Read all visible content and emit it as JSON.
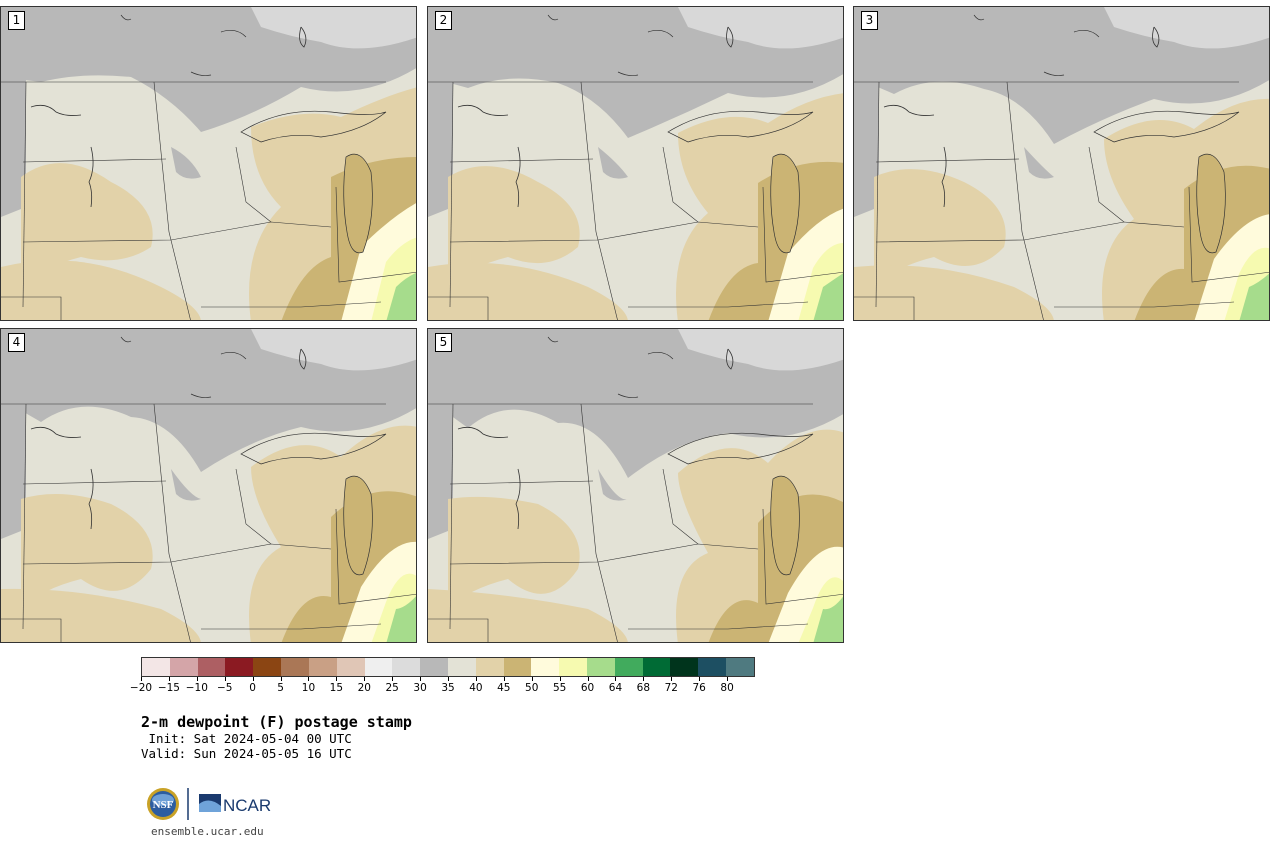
{
  "panels": [
    {
      "label": "1"
    },
    {
      "label": "2"
    },
    {
      "label": "3"
    },
    {
      "label": "4"
    },
    {
      "label": "5"
    }
  ],
  "colorbar": {
    "tick_labels": [
      "−20",
      "−15",
      "−10",
      "−5",
      "0",
      "5",
      "10",
      "15",
      "20",
      "25",
      "30",
      "35",
      "40",
      "45",
      "50",
      "55",
      "60",
      "64",
      "68",
      "72",
      "76",
      "80"
    ],
    "colors": [
      "#f3e6e6",
      "#d4a5a8",
      "#ad5f63",
      "#8b1a22",
      "#8b4513",
      "#aa7756",
      "#c9a085",
      "#e0c6b6",
      "#efefef",
      "#dcdcdc",
      "#b8b8b8",
      "#e3e2d6",
      "#e2d2a9",
      "#cbb474",
      "#fffbdc",
      "#f6fab0",
      "#a6dc8c",
      "#41ab5d",
      "#006b35",
      "#00341c",
      "#1d4f62",
      "#4f7a80"
    ]
  },
  "title": "2-m dewpoint (F) postage stamp",
  "init": " Init: Sat 2024-05-04 00 UTC",
  "valid": "Valid: Sun 2024-05-05 16 UTC",
  "logos": {
    "nsf": "NSF",
    "ncar": "NCAR"
  },
  "site": "ensemble.ucar.edu",
  "colors": {
    "gray_dry": "#b8b8b8",
    "light_gray": "#dcdcdc",
    "tan_light": "#e3e2d6",
    "tan": "#e2d2a9",
    "tan_dark": "#cbb474",
    "yellow": "#fffbdc",
    "yellow_green": "#f6fab0",
    "green": "#a6dc8c",
    "green_dark": "#41ab5d"
  }
}
